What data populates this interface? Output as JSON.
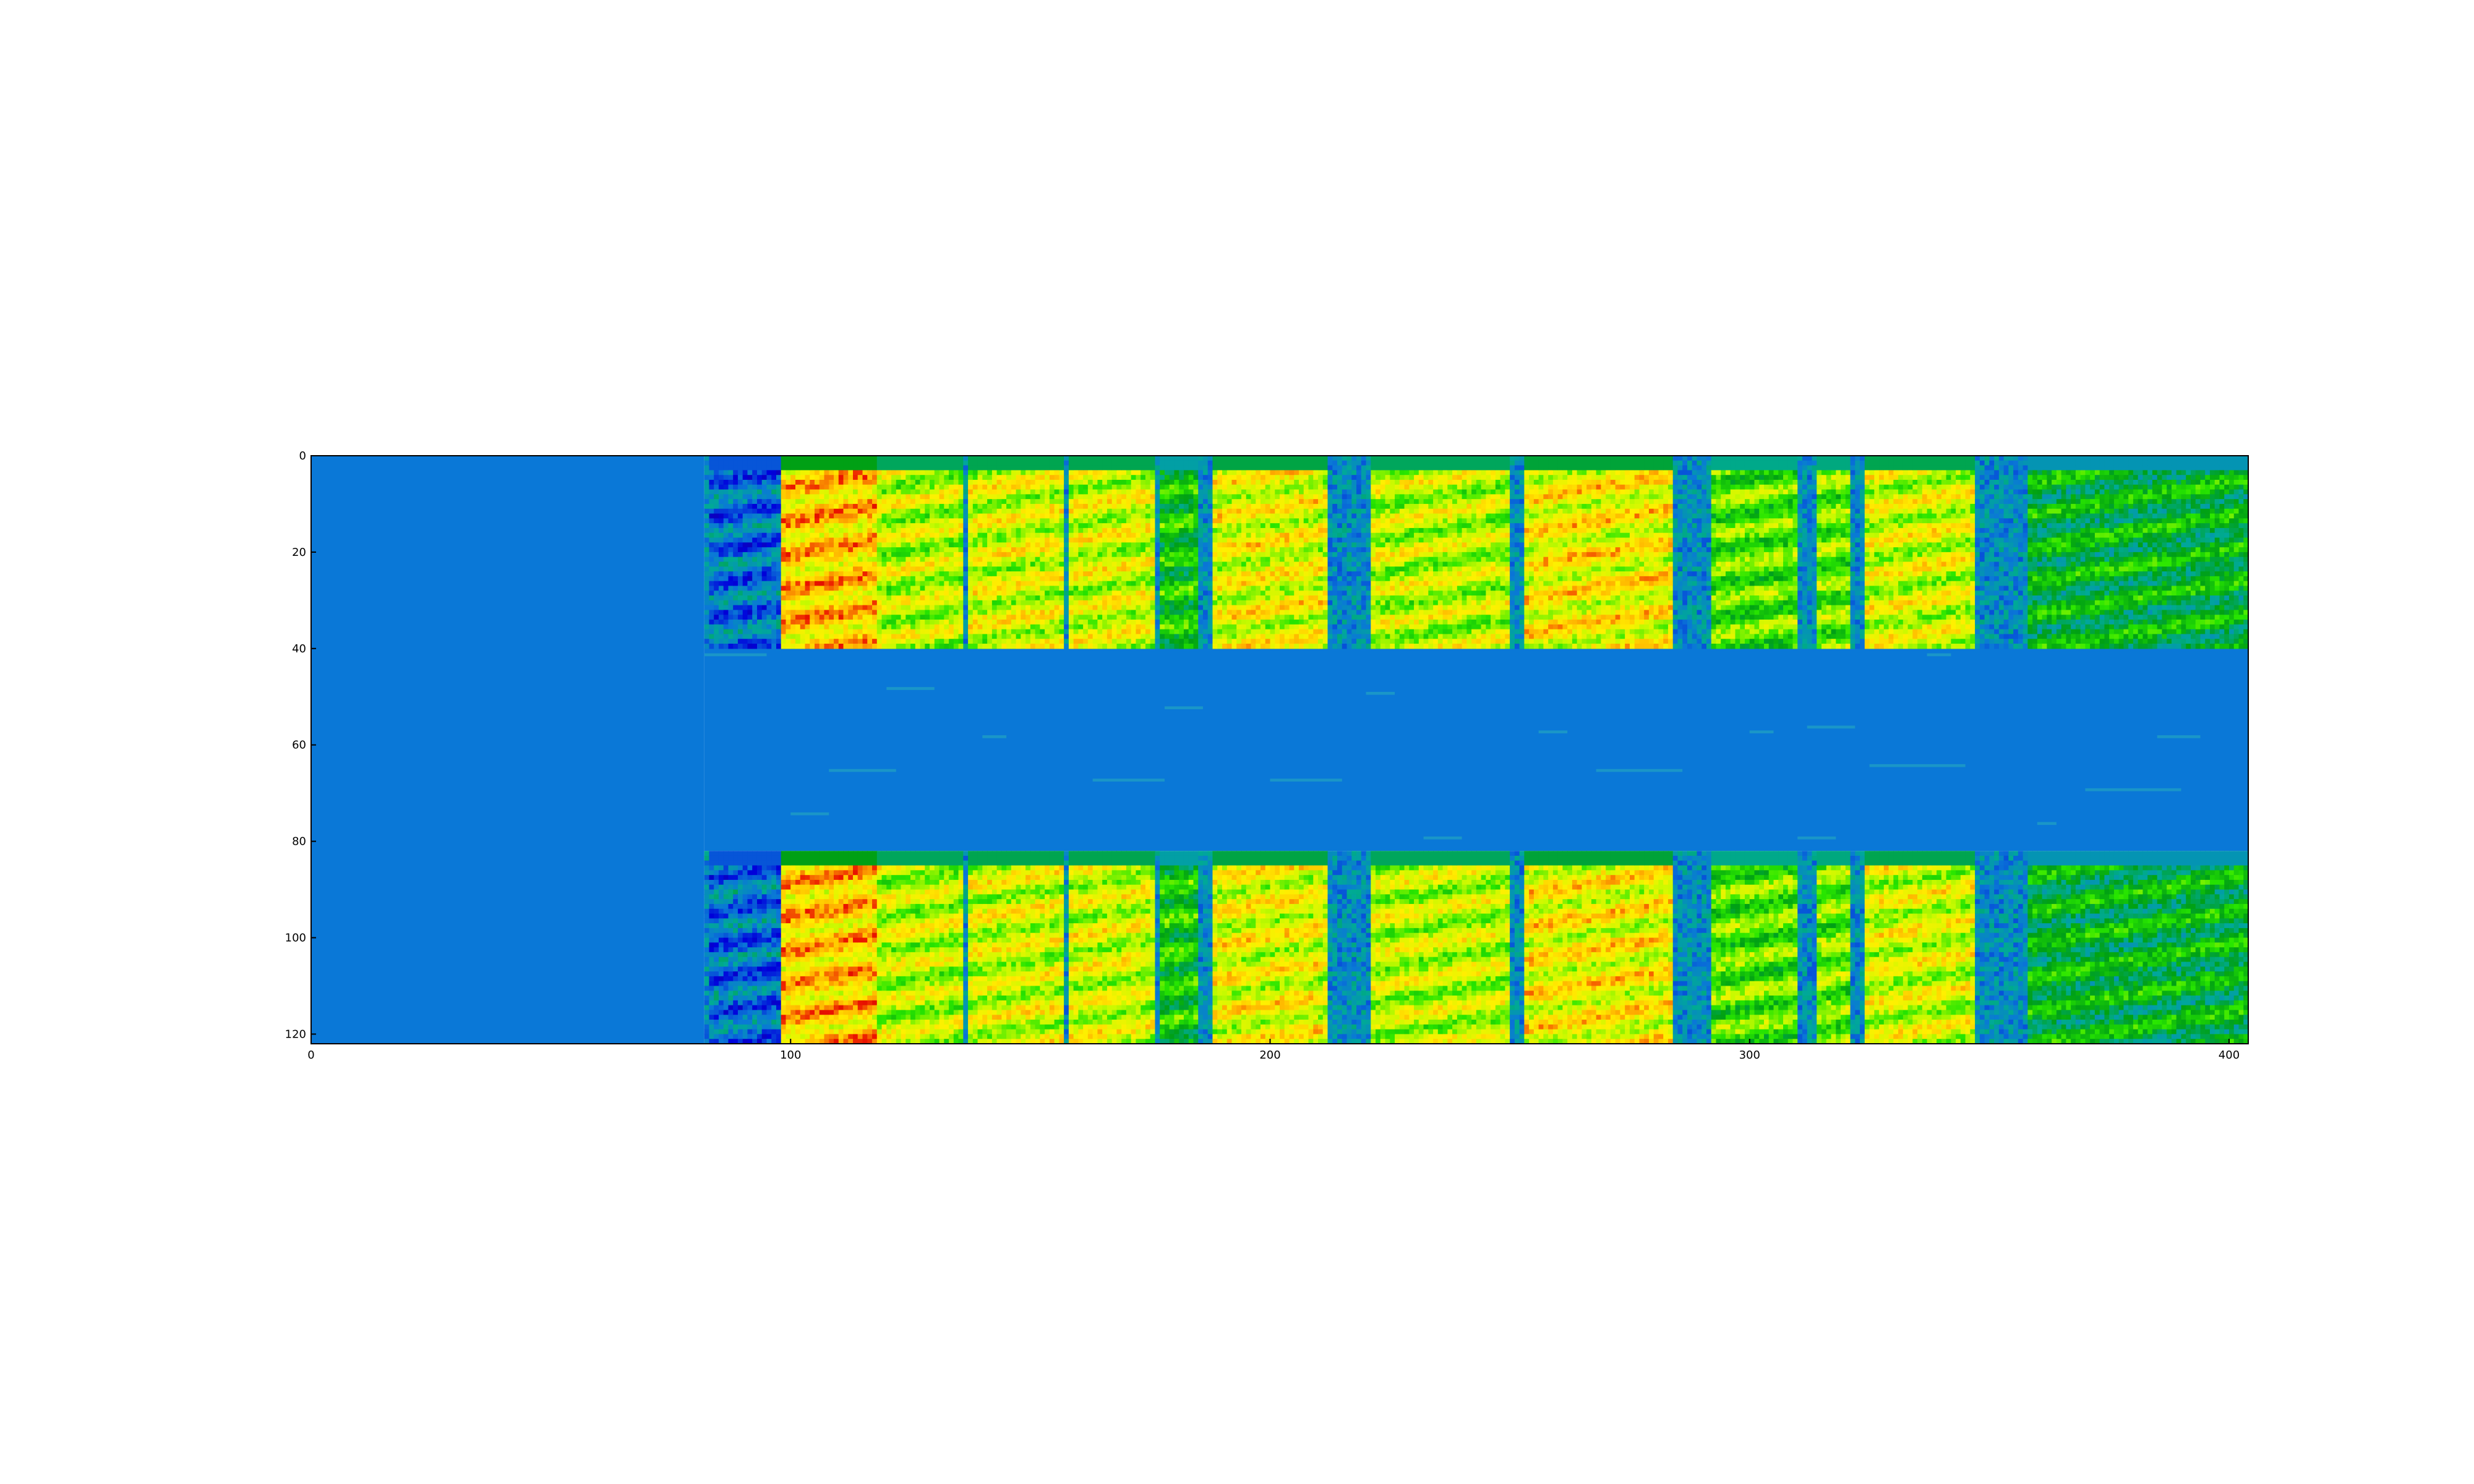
{
  "chart_data": {
    "type": "heatmap",
    "title": "",
    "xlabel": "",
    "ylabel": "",
    "xlim": [
      0,
      404
    ],
    "ylim": [
      122,
      0
    ],
    "x_ticks": [
      0,
      100,
      200,
      300,
      400
    ],
    "y_ticks": [
      0,
      20,
      40,
      60,
      80,
      100,
      120
    ],
    "colormap": "spectral",
    "grid": false,
    "legend": "none",
    "colors": {
      "background_fill": "#0a78d7",
      "frame": "#000000"
    },
    "content_description_note": null,
    "regions": [
      {
        "name": "leading-padding",
        "x_range": [
          0,
          82
        ],
        "y_range": [
          0,
          122
        ],
        "value": "uniform"
      },
      {
        "name": "spectrogram-upper",
        "x_range": [
          82,
          404
        ],
        "y_range": [
          0,
          40
        ]
      },
      {
        "name": "masked-band",
        "x_range": [
          82,
          404
        ],
        "y_range": [
          40,
          82
        ],
        "value": "uniform"
      },
      {
        "name": "spectrogram-lower",
        "x_range": [
          82,
          404
        ],
        "y_range": [
          82,
          122
        ]
      }
    ],
    "segments": [
      {
        "x": [
          83,
          98
        ],
        "level": 0.3
      },
      {
        "x": [
          98,
          118
        ],
        "level": 0.82
      },
      {
        "x": [
          118,
          136
        ],
        "level": 0.7
      },
      {
        "x": [
          137,
          157
        ],
        "level": 0.72
      },
      {
        "x": [
          158,
          176
        ],
        "level": 0.72
      },
      {
        "x": [
          177,
          185
        ],
        "level": 0.55
      },
      {
        "x": [
          188,
          212
        ],
        "level": 0.74
      },
      {
        "x": [
          221,
          250
        ],
        "level": 0.7
      },
      {
        "x": [
          253,
          284
        ],
        "level": 0.76
      },
      {
        "x": [
          292,
          310
        ],
        "level": 0.62
      },
      {
        "x": [
          314,
          321
        ],
        "level": 0.64
      },
      {
        "x": [
          324,
          347
        ],
        "level": 0.72
      },
      {
        "x": [
          358,
          404
        ],
        "level": 0.5
      }
    ]
  }
}
